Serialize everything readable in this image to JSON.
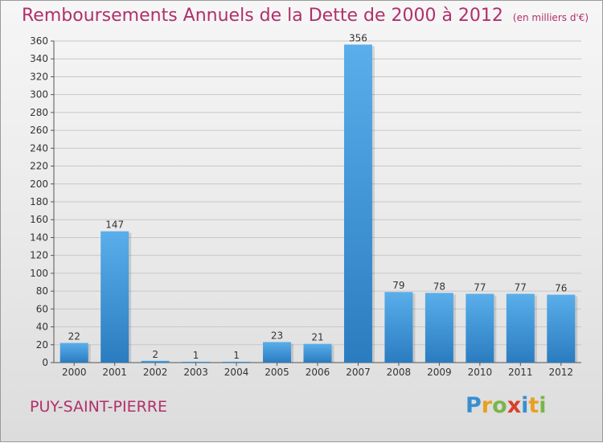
{
  "title": "Remboursements Annuels de la Dette de 2000 à 2012",
  "unit_note": "(en milliers d'€)",
  "commune": "PUY-SAINT-PIERRE",
  "logo": {
    "text": "Proxiti",
    "letters": [
      {
        "char": "P",
        "color": "#3a8ed0"
      },
      {
        "char": "r",
        "color": "#e8a020"
      },
      {
        "char": "o",
        "color": "#7ab64a"
      },
      {
        "char": "x",
        "color": "#d8402a"
      },
      {
        "char": "i",
        "color": "#3a8ed0"
      },
      {
        "char": "t",
        "color": "#e8a020"
      },
      {
        "char": "i",
        "color": "#7ab64a"
      }
    ]
  },
  "colors": {
    "title": "#b0306b",
    "bar_top": "#5aaeea",
    "bar_bottom": "#2a7cc0",
    "grid": "#c8c8c8",
    "axis_text": "#333333"
  },
  "chart_data": {
    "type": "bar",
    "categories": [
      "2000",
      "2001",
      "2002",
      "2003",
      "2004",
      "2005",
      "2006",
      "2007",
      "2008",
      "2009",
      "2010",
      "2011",
      "2012"
    ],
    "values": [
      22,
      147,
      2,
      1,
      1,
      23,
      21,
      356,
      79,
      78,
      77,
      77,
      76
    ],
    "ylim": [
      0,
      360
    ],
    "yticks": [
      0,
      20,
      40,
      60,
      80,
      100,
      120,
      140,
      160,
      180,
      200,
      220,
      240,
      260,
      280,
      300,
      320,
      340,
      360
    ],
    "grid": true,
    "data_labels": true
  }
}
